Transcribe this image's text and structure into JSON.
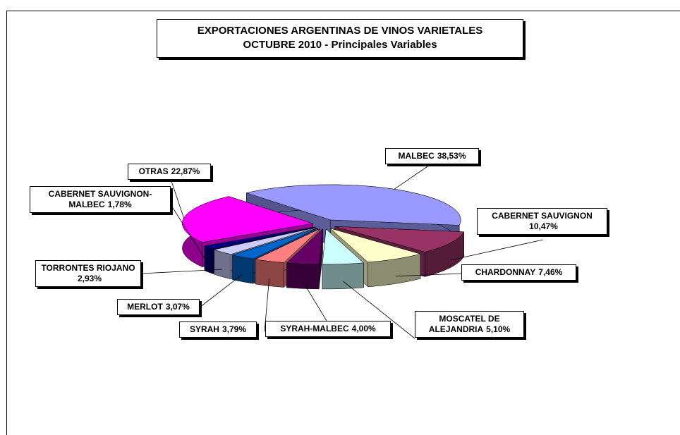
{
  "chart_data": {
    "type": "pie",
    "title": "EXPORTACIONES ARGENTINAS DE VINOS VARIETALES",
    "subtitle": "OCTUBRE 2010  - Principales Variables",
    "categories": [
      "MALBEC",
      "CABERNET SAUVIGNON",
      "CHARDONNAY",
      "MOSCATEL DE ALEJANDRIA",
      "SYRAH-MALBEC",
      "SYRAH",
      "MERLOT",
      "TORRONTES RIOJANO",
      "CABERNET SAUVIGNON-MALBEC",
      "OTRAS"
    ],
    "values": [
      38.53,
      10.47,
      7.46,
      5.1,
      4.0,
      3.79,
      3.07,
      2.93,
      1.78,
      22.87
    ],
    "value_labels": [
      "38,53%",
      "10,47%",
      "7,46%",
      "5,10%",
      "4,00%",
      "3,79%",
      "3,07%",
      "2,93%",
      "1,78%",
      "22,87%"
    ],
    "colors": [
      "#9999ff",
      "#993366",
      "#ffffcc",
      "#ccffff",
      "#660066",
      "#ff8080",
      "#0066cc",
      "#ccccff",
      "#000080",
      "#ff00ff"
    ]
  }
}
